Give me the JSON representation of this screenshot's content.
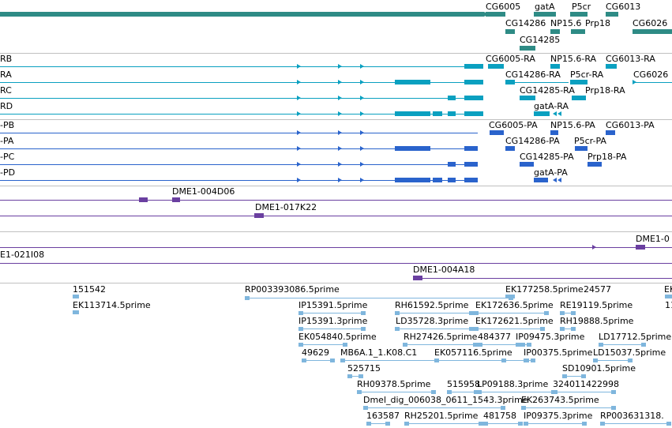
{
  "colors": {
    "gene": "#2e8b85",
    "transcript_ra": "#0aa0c0",
    "transcript_pa": "#2a63cc",
    "clone": "#6a3fa0",
    "est": "#7fb6dd",
    "separator": "#c0c0c0"
  },
  "tracks": {
    "genes": {
      "labels": [
        "CG6005",
        "gatA",
        "P5cr",
        "CG6013",
        "CG14286",
        "NP15.6",
        "Prp18",
        "CG6026",
        "CG14285"
      ]
    },
    "transcripts_ra": {
      "row_labels": [
        "RB",
        "RA",
        "RC",
        "RD"
      ],
      "labels": [
        "CG6005-RA",
        "NP15.6-RA",
        "CG6013-RA",
        "CG14286-RA",
        "P5cr-RA",
        "CG6026",
        "CG14285-RA",
        "Prp18-RA",
        "gatA-RA"
      ]
    },
    "transcripts_pa": {
      "row_labels": [
        "-PB",
        "-PA",
        "-PC",
        "-PD"
      ],
      "labels": [
        "CG6005-PA",
        "NP15.6-PA",
        "CG6013-PA",
        "CG14286-PA",
        "P5cr-PA",
        "CG14285-PA",
        "Prp18-PA",
        "gatA-PA"
      ]
    },
    "clones_1": {
      "labels": [
        "DME1-004D06",
        "DME1-017K22"
      ]
    },
    "clones_2": {
      "labels": [
        "DME1-0",
        "E1-021I08"
      ]
    },
    "clones_3": {
      "labels": [
        "DME1-004A18"
      ]
    },
    "ests": {
      "labels": [
        "151542",
        "RP003393086.5prime",
        "EK177258.5prime",
        "24577",
        "EK",
        "EK113714.5prime",
        "11",
        "IP15391.5prime",
        "RH61592.5prime",
        "EK172636.5prime",
        "RE19119.5prime",
        "IP15391.3prime",
        "LD35728.3prime",
        "EK172621.5prime",
        "RH19888.5prime",
        "EK054840.5prime",
        "RH27426.5prime",
        "484377",
        "IP09475.3prime",
        "LD17712.5prime",
        "49629",
        "MB6A.1_1.K08.C1",
        "EK057116.5prime",
        "IP00375.5prime",
        "LD15037.5prime",
        "525715",
        "SD10901.5prime",
        "RH09378.5prime",
        "515958",
        "LP09188.3prime",
        "324011422998",
        "Dmel_dig_006038_0611_1543.3prime",
        "EK263743.5prime",
        "163587",
        "RH25201.5prime",
        "481758",
        "IP09375.3prime",
        "RP003631318."
      ]
    }
  }
}
